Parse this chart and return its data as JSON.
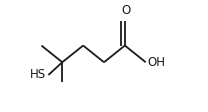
{
  "bg_color": "#ffffff",
  "line_color": "#1a1a1a",
  "line_width": 1.3,
  "font_size": 8.5,
  "O_label": "O",
  "OH_label": "OH",
  "HS_label": "HS"
}
